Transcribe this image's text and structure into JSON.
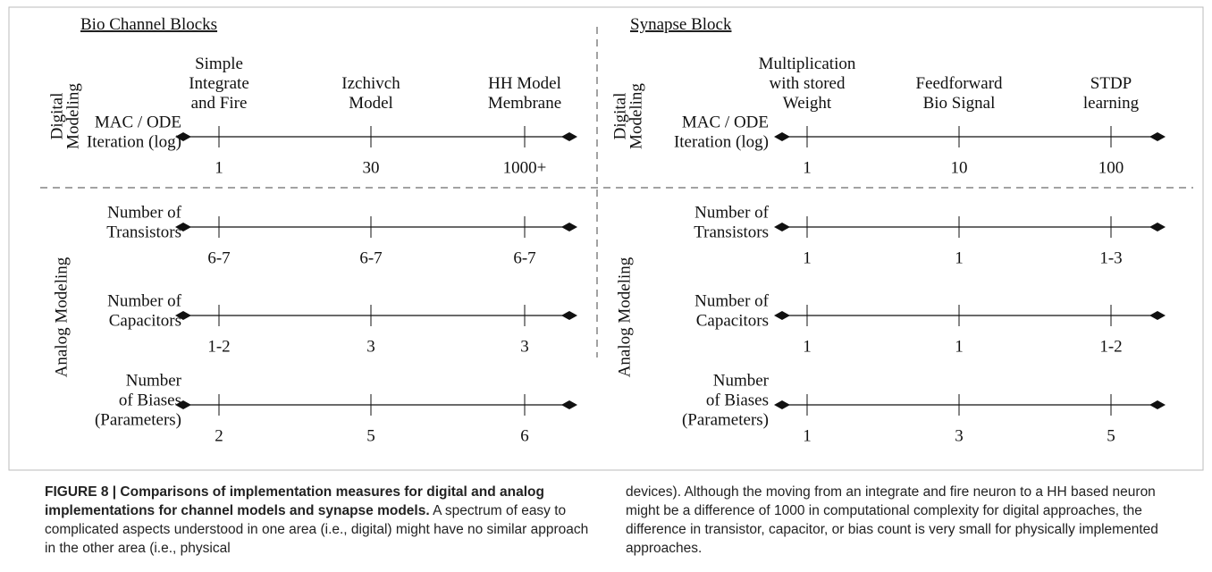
{
  "panels": [
    {
      "title": "Bio Channel Blocks",
      "headers": [
        [
          "Simple",
          "Integrate",
          "and Fire"
        ],
        [
          "Izchivch",
          "Model"
        ],
        [
          "HH Model",
          "Membrane"
        ]
      ],
      "side_labels": [
        [
          "Digital",
          "Modeling"
        ],
        [
          "Analog Modeling"
        ]
      ],
      "rows": [
        {
          "label": [
            "MAC / ODE",
            "Iteration (log)"
          ],
          "values": [
            "1",
            "30",
            "1000+"
          ]
        },
        {
          "label": [
            "Number of",
            "Transistors"
          ],
          "values": [
            "6-7",
            "6-7",
            "6-7"
          ]
        },
        {
          "label": [
            "Number of",
            "Capacitors"
          ],
          "values": [
            "1-2",
            "3",
            "3"
          ]
        },
        {
          "label": [
            "Number",
            "of Biases",
            "(Parameters)"
          ],
          "values": [
            "2",
            "5",
            "6"
          ]
        }
      ]
    },
    {
      "title": "Synapse Block",
      "headers": [
        [
          "Multiplication",
          "with stored",
          "Weight"
        ],
        [
          "Feedforward",
          "Bio Signal"
        ],
        [
          "STDP",
          "learning"
        ]
      ],
      "side_labels": [
        [
          "Digital",
          "Modeling"
        ],
        [
          "Analog Modeling"
        ]
      ],
      "rows": [
        {
          "label": [
            "MAC / ODE",
            "Iteration (log)"
          ],
          "values": [
            "1",
            "10",
            "100"
          ]
        },
        {
          "label": [
            "Number of",
            "Transistors"
          ],
          "values": [
            "1",
            "1",
            "1-3"
          ]
        },
        {
          "label": [
            "Number of",
            "Capacitors"
          ],
          "values": [
            "1",
            "1",
            "1-2"
          ]
        },
        {
          "label": [
            "Number",
            "of Biases",
            "(Parameters)"
          ],
          "values": [
            "1",
            "3",
            "5"
          ]
        }
      ]
    }
  ],
  "caption": {
    "bold": "FIGURE 8 | Comparisons of implementation measures for digital and analog implementations for channel models and synapse models.",
    "left": "A spectrum of easy to complicated aspects understood in one area (i.e., digital) might have no similar approach in the other area (i.e., physical",
    "right": "devices). Although the moving from an integrate and fire neuron to a HH based neuron might be a difference of 1000 in computational complexity for digital approaches, the difference in transistor, capacitor, or bias count is very small for physically implemented approaches."
  }
}
